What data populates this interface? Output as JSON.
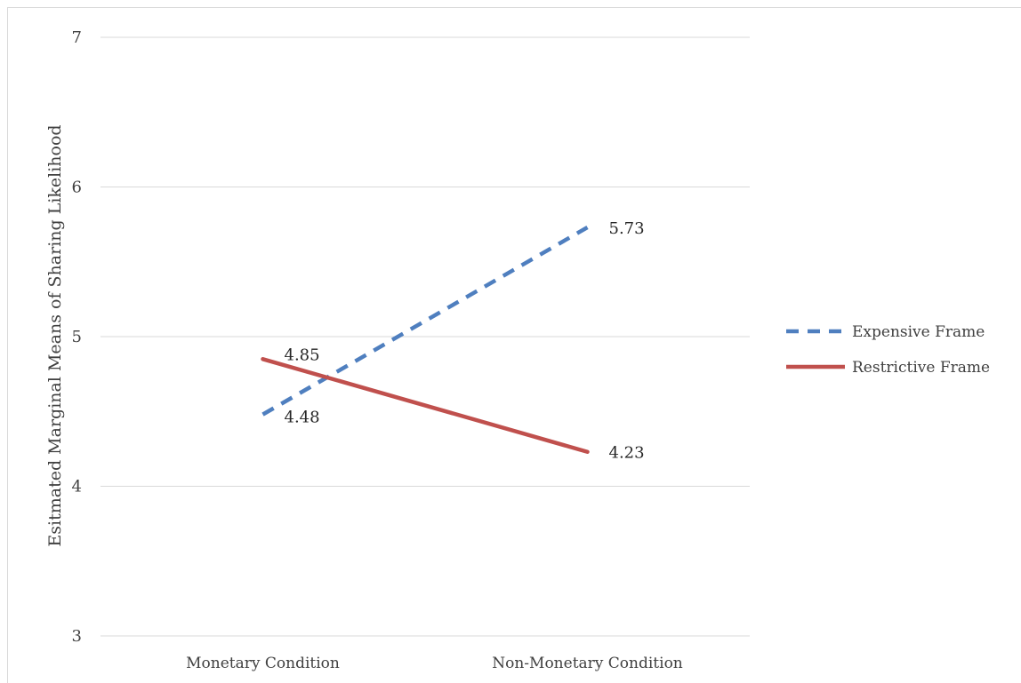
{
  "chart_data": {
    "type": "line",
    "title": "",
    "xlabel": "",
    "ylabel": "Esitmated Marginal Means of Sharing Likelihood",
    "categories": [
      "Monetary Condition",
      "Non-Monetary Condition"
    ],
    "ylim": [
      3,
      7
    ],
    "yticks": [
      3,
      4,
      5,
      6,
      7
    ],
    "grid": true,
    "legend_position": "right",
    "series": [
      {
        "name": "Expensive Frame",
        "values": [
          4.48,
          5.73
        ],
        "labels": [
          "4.48",
          "5.73"
        ],
        "color": "#4f7fbf",
        "line_style": "dashed"
      },
      {
        "name": "Restrictive Frame",
        "values": [
          4.85,
          4.23
        ],
        "labels": [
          "4.85",
          "4.23"
        ],
        "color": "#c0504d",
        "line_style": "solid"
      }
    ]
  }
}
